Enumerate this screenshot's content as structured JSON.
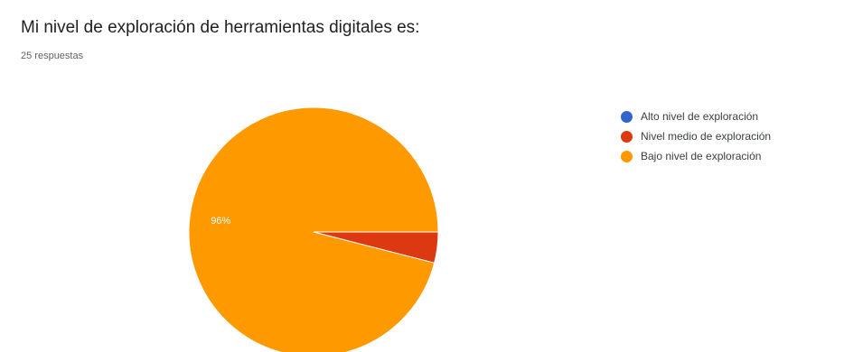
{
  "header": {
    "title": "Mi nivel de exploración de herramientas digitales es:",
    "responses": "25 respuestas"
  },
  "chart_data": {
    "type": "pie",
    "categories": [
      "Alto nivel de exploración",
      "Nivel medio de exploración",
      "Bajo nivel de exploración"
    ],
    "values": [
      0,
      4,
      96
    ],
    "slice_labels": [
      "",
      "",
      "96%"
    ],
    "colors": [
      "#3366cc",
      "#dc3912",
      "#ff9900"
    ],
    "legend_position": "right"
  }
}
